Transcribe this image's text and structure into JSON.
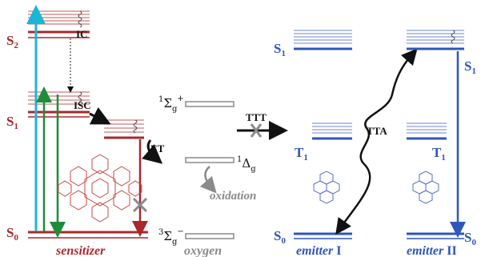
{
  "colors": {
    "sensitizer": "#a8282c",
    "sensitizer_light": "#c05a5a",
    "emitter": "#2f56b8",
    "oxygen": "#8a8a8a",
    "cyan": "#19b6d8",
    "green": "#1f8c3a",
    "black": "#111111"
  },
  "sensitizer": {
    "s2_label": "S",
    "s2_sub": "2",
    "s1_label": "S",
    "s1_sub": "1",
    "s0_label": "S",
    "s0_sub": "0",
    "ic_label": "IC",
    "isc_label": "ISC",
    "et_label": "ET",
    "name": "sensitizer"
  },
  "oxygen": {
    "sigma_pre": "1",
    "sigma": "Σ",
    "sigma_sub": "g",
    "sigma_sup": "+",
    "delta_pre": "1",
    "delta": "Δ",
    "delta_sub": "g",
    "ground_pre": "3",
    "ground": "Σ",
    "ground_sub": "g",
    "ground_sup": "−",
    "oxidation": "oxidation",
    "name": "oxygen"
  },
  "transfer": {
    "ttt_label": "TTT",
    "tta_label": "TTA"
  },
  "emitter1": {
    "s1_label": "S",
    "s1_sub": "1",
    "t1_label": "T",
    "t1_sub": "1",
    "s0_label": "S",
    "s0_sub": "0",
    "name": "emitter",
    "numeral": "I"
  },
  "emitter2": {
    "s1_label": "S",
    "s1_sub": "1",
    "t1_label": "T",
    "t1_sub": "1",
    "s0_label": "S",
    "s0_sub": "0",
    "name": "emitter",
    "numeral": "II"
  }
}
